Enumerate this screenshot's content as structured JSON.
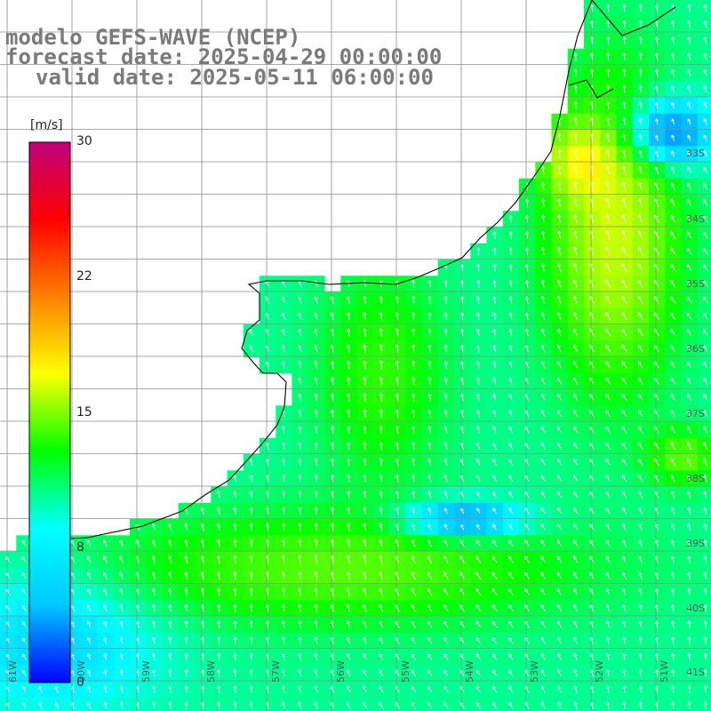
{
  "title": {
    "line1": "modelo GEFS-WAVE (NCEP)",
    "line2": "forecast date: 2025-04-29 00:00:00",
    "line3": "valid date: 2025-05-11 06:00:00"
  },
  "colorbar": {
    "unit_label": "[m/s]",
    "ticks": [
      {
        "label": "30",
        "value": 30
      },
      {
        "label": "22",
        "value": 22
      },
      {
        "label": "15",
        "value": 15
      },
      {
        "label": "8",
        "value": 8
      },
      {
        "label": "0",
        "value": 0
      }
    ],
    "colors": [
      "#0000ff",
      "#00c8ff",
      "#00ffff",
      "#00ff00",
      "#ffff00",
      "#ff8000",
      "#ff0000",
      "#c0007a"
    ]
  },
  "lat_labels": [
    "33S",
    "34S",
    "35S",
    "36S",
    "37S",
    "38S",
    "39S",
    "40S",
    "41S"
  ],
  "lon_labels": [
    "61W",
    "60W",
    "59W",
    "58W",
    "57W",
    "56W",
    "55W",
    "54W",
    "53W",
    "52W",
    "51W"
  ],
  "colors": {
    "grid": "#8c8c8c",
    "coast": "#000000",
    "land": "#ffffff",
    "title": "#7a7a7a"
  }
}
